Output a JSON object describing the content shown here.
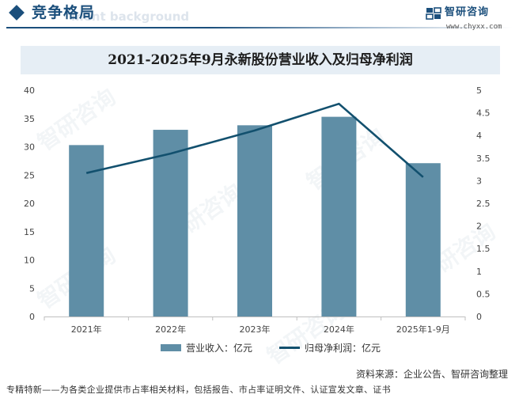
{
  "header": {
    "section_title": "竞争格局",
    "ghost_text": "ment background"
  },
  "brand": {
    "name": "智研咨询",
    "url": "www.chyxx.com"
  },
  "watermark": "智研咨询",
  "chart_data": {
    "type": "bar+line",
    "title": "2021-2025年9月永新股份营业收入及归母净利润",
    "categories": [
      "2021年",
      "2022年",
      "2023年",
      "2024年",
      "2025年1-9月"
    ],
    "series": [
      {
        "name": "营业收入：亿元",
        "type": "bar",
        "axis": "left",
        "values": [
          30.3,
          33.0,
          33.8,
          35.3,
          27.1
        ]
      },
      {
        "name": "归母净利润：亿元",
        "type": "line",
        "axis": "right",
        "values": [
          3.17,
          3.6,
          4.11,
          4.7,
          3.08
        ]
      }
    ],
    "left_axis": {
      "min": 0,
      "max": 40,
      "step": 5,
      "ticks": [
        "0",
        "5",
        "10",
        "15",
        "20",
        "25",
        "30",
        "35",
        "40"
      ]
    },
    "right_axis": {
      "min": 0,
      "max": 5,
      "step": 0.5,
      "ticks": [
        "0",
        "0.5",
        "1",
        "1.5",
        "2",
        "2.5",
        "3",
        "3.5",
        "4",
        "4.5",
        "5"
      ]
    },
    "grid": false,
    "legend_position": "bottom",
    "colors": {
      "bar": "#5f8ea6",
      "line": "#12506e",
      "axis": "#bfbfbf"
    }
  },
  "source": "资料来源：企业公告、智研咨询整理",
  "footer": "专精特新——为各类企业提供市占率相关材料，包括报告、市占率证明文件、认证宣发文章、证书"
}
